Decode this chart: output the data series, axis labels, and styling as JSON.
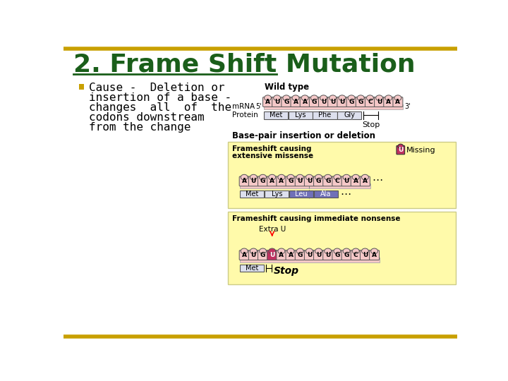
{
  "title": "2. Frame Shift Mutation",
  "title_color": "#1a5e1a",
  "title_fontsize": 26,
  "bullet_color": "#c8a000",
  "bullet_text_lines": [
    "Cause -  Deletion or",
    "insertion of a base -",
    "changes  all  of  the",
    "codons downstream",
    "from the change"
  ],
  "bullet_fontsize": 11.5,
  "bg_color": "#ffffff",
  "border_color": "#c8a000",
  "wild_type_label": "Wild type",
  "wild_type_bases": [
    "A",
    "U",
    "G",
    "A",
    "A",
    "G",
    "U",
    "U",
    "U",
    "G",
    "G",
    "C",
    "U",
    "A",
    "A"
  ],
  "mrna_label": "mRNA",
  "prime5": "5'",
  "prime3": "3'",
  "protein_label": "Protein",
  "wild_codons": [
    "Met",
    "Lys",
    "Phe",
    "Gly"
  ],
  "stop_label": "Stop",
  "base_pair_label": "Base-pair insertion or deletion",
  "frameshift1_label1": "Frameshift causing",
  "frameshift1_label2": "extensive missense",
  "missing_label": "Missing",
  "frameshift1_bases": [
    "A",
    "U",
    "G",
    "A",
    "A",
    "G",
    "U",
    "U",
    "G",
    "G",
    "C",
    "U",
    "A",
    "A"
  ],
  "frameshift1_codons": [
    "Met",
    "Lys",
    "Leu",
    "Ala"
  ],
  "frameshift2_label": "Frameshift causing immediate nonsense",
  "extra_u_label": "Extra U",
  "frameshift2_bases": [
    "A",
    "U",
    "G",
    "U",
    "A",
    "A",
    "G",
    "U",
    "U",
    "U",
    "G",
    "G",
    "C",
    "U",
    "A"
  ],
  "frameshift2_codons": [
    "Met"
  ],
  "yellow_bg": "#fffaaa",
  "pink_mrna": "#f5c8c8",
  "codon_bg": "#dde0ee",
  "purple_codon": "#7070b8",
  "missing_base_color": "#c03060",
  "extra_base_color": "#c03060",
  "block_fill": "#f5c8c8",
  "block_border": "#555555"
}
